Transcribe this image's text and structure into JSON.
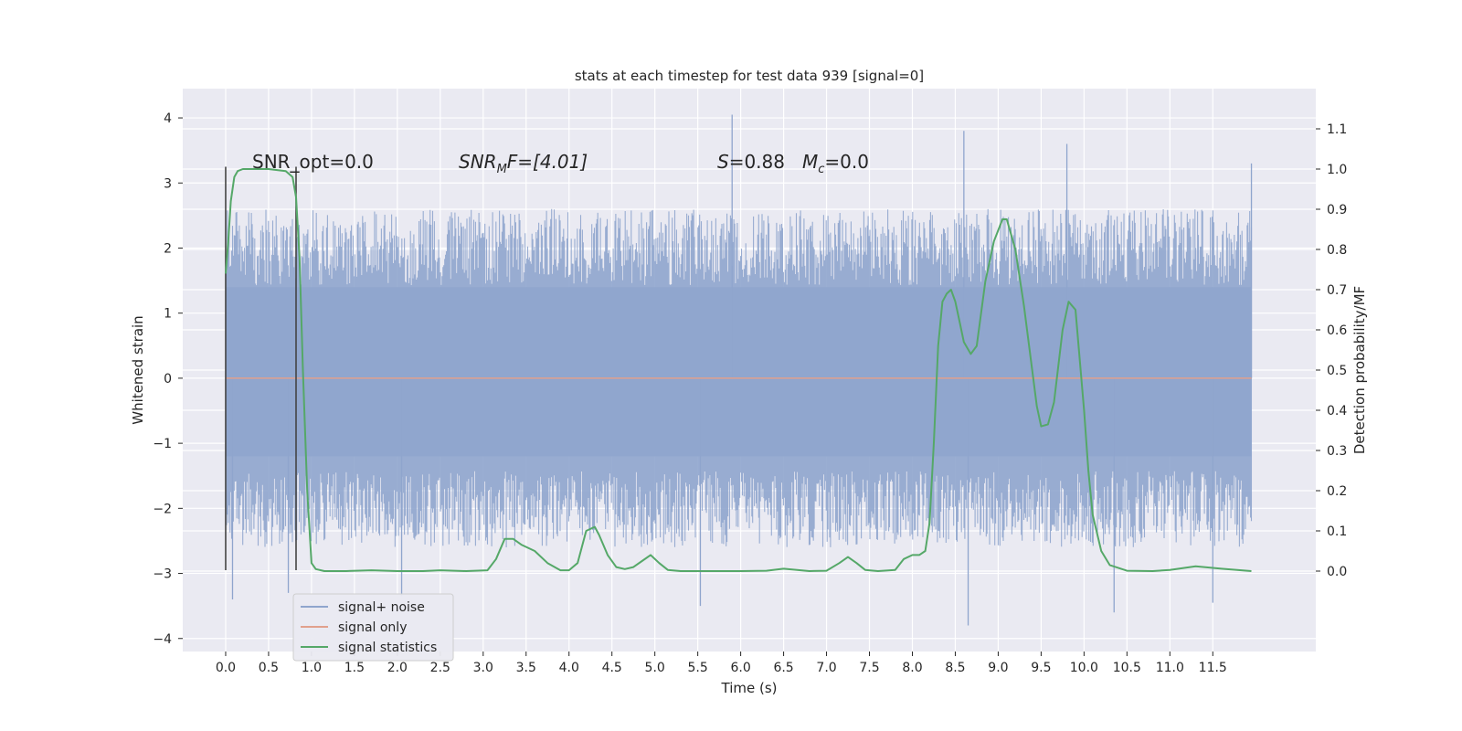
{
  "chart_data": {
    "type": "line",
    "title": "stats at each timestep for test data 939 [signal=0]",
    "xlabel": "Time (s)",
    "ylabel": "Whitened strain",
    "y2label": "Detection probability/MF",
    "xlim": [
      -0.5,
      12.7
    ],
    "ylim": [
      -4.2,
      4.45
    ],
    "y2lim": [
      -0.2,
      1.2
    ],
    "xticks": [
      0.0,
      0.5,
      1.0,
      1.5,
      2.0,
      2.5,
      3.0,
      3.5,
      4.0,
      4.5,
      5.0,
      5.5,
      6.0,
      6.5,
      7.0,
      7.5,
      8.0,
      8.5,
      9.0,
      9.5,
      10.0,
      10.5,
      11.0,
      11.5
    ],
    "xtick_labels": [
      "0.0",
      "0.5",
      "1.0",
      "1.5",
      "2.0",
      "2.5",
      "3.0",
      "3.5",
      "4.0",
      "4.5",
      "5.0",
      "5.5",
      "6.0",
      "6.5",
      "7.0",
      "7.5",
      "8.0",
      "8.5",
      "9.0",
      "9.5",
      "10.0",
      "10.5",
      "11.0",
      "11.5"
    ],
    "yticks": [
      4,
      3,
      2,
      1,
      0,
      -1,
      -2,
      -3,
      -4
    ],
    "ytick_labels": [
      "4",
      "3",
      "2",
      "1",
      "0",
      "−1",
      "−2",
      "−3",
      "−4"
    ],
    "y2ticks": [
      1.1,
      1.0,
      0.9,
      0.8,
      0.7,
      0.6,
      0.5,
      0.4,
      0.3,
      0.2,
      0.1,
      0.0
    ],
    "y2tick_labels": [
      "1.1",
      "1.0",
      "0.9",
      "0.8",
      "0.7",
      "0.6",
      "0.5",
      "0.4",
      "0.3",
      "0.2",
      "0.1",
      "0.0"
    ],
    "grid": true,
    "legend_position": "lower-left",
    "annotations": {
      "snr_opt": "SNR_opt=0.0",
      "snr_mf_prefix": "SNR",
      "snr_mf_sub": "M",
      "snr_mf_suffix": "F=[4.01]",
      "s_prefix": "S",
      "s_suffix": "=0.88",
      "mc_prefix": "M",
      "mc_sub": "c",
      "mc_suffix": "=0.0"
    },
    "markers": [
      {
        "x": 0.0,
        "y": [
          -2.95,
          3.25
        ]
      },
      {
        "x": 0.82,
        "y": [
          -2.95,
          3.25
        ]
      }
    ],
    "noise_envelope": {
      "x_range": [
        0.0,
        11.95
      ],
      "dense_band": [
        -1.2,
        1.4
      ],
      "typical_range": [
        -2.6,
        2.6
      ],
      "extremes": [
        {
          "x": 0.08,
          "y": -3.4
        },
        {
          "x": 0.73,
          "y": -3.3
        },
        {
          "x": 2.05,
          "y": -3.35
        },
        {
          "x": 5.53,
          "y": -3.5
        },
        {
          "x": 5.9,
          "y": 4.05
        },
        {
          "x": 8.6,
          "y": 3.8
        },
        {
          "x": 8.65,
          "y": -3.8
        },
        {
          "x": 9.8,
          "y": 3.6
        },
        {
          "x": 10.35,
          "y": -3.6
        },
        {
          "x": 11.5,
          "y": -3.45
        },
        {
          "x": 11.95,
          "y": 3.3
        }
      ]
    },
    "series": [
      {
        "name": "signal+ noise",
        "color": "#8fa5cd"
      },
      {
        "name": "signal only",
        "color": "#e1a08d",
        "y_constant": 0.0
      },
      {
        "name": "signal statistics",
        "color": "#55a868",
        "axis": "y2",
        "x": [
          0.0,
          0.03,
          0.06,
          0.1,
          0.14,
          0.2,
          0.3,
          0.5,
          0.7,
          0.78,
          0.82,
          0.86,
          0.9,
          0.95,
          1.0,
          1.05,
          1.15,
          1.4,
          1.7,
          2.0,
          2.3,
          2.5,
          2.8,
          3.05,
          3.15,
          3.25,
          3.35,
          3.45,
          3.6,
          3.75,
          3.9,
          4.0,
          4.1,
          4.2,
          4.3,
          4.35,
          4.45,
          4.55,
          4.65,
          4.75,
          4.85,
          4.95,
          5.05,
          5.15,
          5.3,
          5.6,
          6.0,
          6.3,
          6.5,
          6.8,
          7.0,
          7.15,
          7.25,
          7.35,
          7.45,
          7.6,
          7.8,
          7.9,
          8.0,
          8.08,
          8.15,
          8.2,
          8.25,
          8.3,
          8.35,
          8.4,
          8.45,
          8.5,
          8.55,
          8.6,
          8.68,
          8.75,
          8.85,
          8.95,
          9.05,
          9.1,
          9.2,
          9.3,
          9.45,
          9.5,
          9.58,
          9.65,
          9.75,
          9.82,
          9.9,
          10.0,
          10.05,
          10.1,
          10.2,
          10.3,
          10.5,
          10.8,
          11.0,
          11.3,
          11.6,
          11.95
        ],
        "values": [
          0.74,
          0.82,
          0.92,
          0.98,
          0.995,
          1.0,
          1.0,
          1.0,
          0.995,
          0.98,
          0.93,
          0.78,
          0.5,
          0.2,
          0.02,
          0.005,
          0.0,
          0.0,
          0.002,
          0.0,
          0.0,
          0.002,
          0.0,
          0.002,
          0.03,
          0.08,
          0.08,
          0.065,
          0.05,
          0.02,
          0.002,
          0.002,
          0.02,
          0.1,
          0.11,
          0.09,
          0.04,
          0.01,
          0.005,
          0.01,
          0.025,
          0.04,
          0.02,
          0.003,
          0.0,
          0.0,
          0.0,
          0.001,
          0.006,
          0.0,
          0.001,
          0.02,
          0.035,
          0.02,
          0.003,
          0.0,
          0.003,
          0.03,
          0.04,
          0.04,
          0.05,
          0.12,
          0.32,
          0.56,
          0.67,
          0.69,
          0.7,
          0.67,
          0.62,
          0.57,
          0.54,
          0.56,
          0.72,
          0.82,
          0.875,
          0.875,
          0.8,
          0.66,
          0.41,
          0.36,
          0.365,
          0.42,
          0.6,
          0.67,
          0.65,
          0.4,
          0.25,
          0.14,
          0.05,
          0.015,
          0.001,
          0.0,
          0.003,
          0.012,
          0.006,
          0.0
        ]
      }
    ]
  }
}
